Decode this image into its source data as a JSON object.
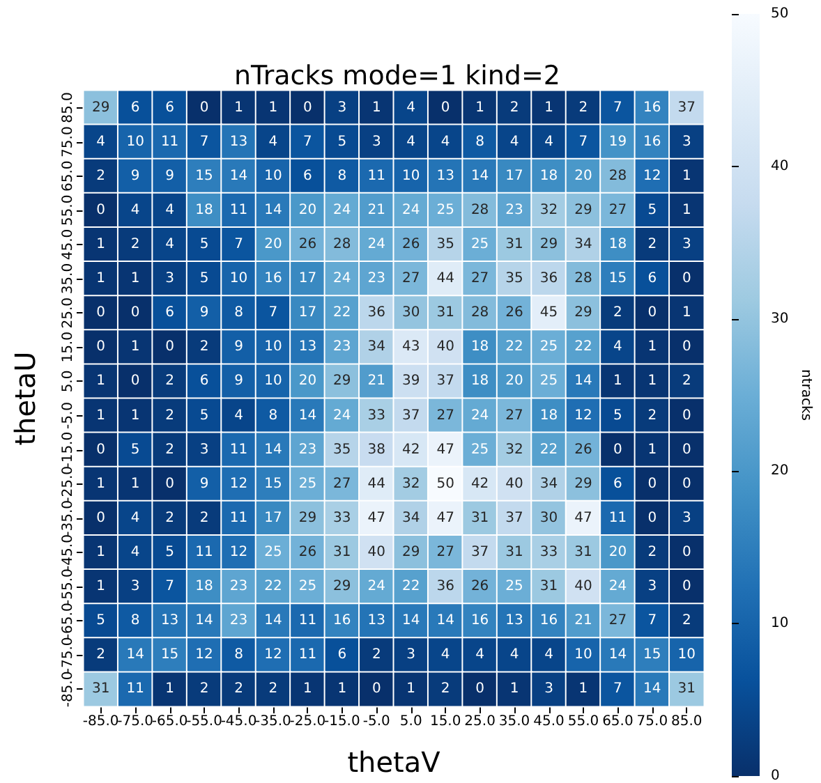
{
  "chart_data": {
    "type": "heatmap",
    "title": "nTracks mode=1 kind=2",
    "xlabel": "thetaV",
    "ylabel": "thetaU",
    "clabel": "ntracks",
    "categories": [
      "-85.0",
      "-75.0",
      "-65.0",
      "-55.0",
      "-45.0",
      "-35.0",
      "-25.0",
      "-15.0",
      "-5.0",
      "5.0",
      "15.0",
      "25.0",
      "35.0",
      "45.0",
      "55.0",
      "65.0",
      "75.0",
      "85.0"
    ],
    "y_categories": [
      "85.0",
      "75.0",
      "65.0",
      "55.0",
      "45.0",
      "35.0",
      "25.0",
      "15.0",
      "5.0",
      "-5.0",
      "-15.0",
      "-25.0",
      "-35.0",
      "-45.0",
      "-55.0",
      "-65.0",
      "-75.0",
      "-85.0"
    ],
    "cells": [
      [
        29,
        6,
        6,
        0,
        1,
        1,
        0,
        3,
        1,
        4,
        0,
        1,
        2,
        1,
        2,
        7,
        16,
        37
      ],
      [
        4,
        10,
        11,
        7,
        13,
        4,
        7,
        5,
        3,
        4,
        4,
        8,
        4,
        4,
        7,
        19,
        16,
        3
      ],
      [
        2,
        9,
        9,
        15,
        14,
        10,
        6,
        8,
        11,
        10,
        13,
        14,
        17,
        18,
        20,
        28,
        12,
        1
      ],
      [
        0,
        4,
        4,
        18,
        11,
        14,
        20,
        24,
        21,
        24,
        25,
        28,
        23,
        32,
        29,
        27,
        5,
        1
      ],
      [
        1,
        2,
        4,
        5,
        7,
        20,
        26,
        28,
        24,
        26,
        35,
        25,
        31,
        29,
        34,
        18,
        2,
        3
      ],
      [
        1,
        1,
        3,
        5,
        10,
        16,
        17,
        24,
        23,
        27,
        44,
        27,
        35,
        36,
        28,
        15,
        6,
        0
      ],
      [
        0,
        0,
        6,
        9,
        8,
        7,
        17,
        22,
        36,
        30,
        31,
        28,
        26,
        45,
        29,
        2,
        0,
        1
      ],
      [
        0,
        1,
        0,
        2,
        9,
        10,
        13,
        23,
        34,
        43,
        40,
        18,
        22,
        25,
        22,
        4,
        1,
        0
      ],
      [
        1,
        0,
        2,
        6,
        9,
        10,
        20,
        29,
        21,
        39,
        37,
        18,
        20,
        25,
        14,
        1,
        1,
        2
      ],
      [
        1,
        1,
        2,
        5,
        4,
        8,
        14,
        24,
        33,
        37,
        27,
        24,
        27,
        18,
        12,
        5,
        2,
        0
      ],
      [
        0,
        5,
        2,
        3,
        11,
        14,
        23,
        35,
        38,
        42,
        47,
        25,
        32,
        22,
        26,
        0,
        1,
        0
      ],
      [
        1,
        1,
        0,
        9,
        12,
        15,
        25,
        27,
        44,
        32,
        50,
        42,
        40,
        34,
        29,
        6,
        0,
        0
      ],
      [
        0,
        4,
        2,
        2,
        11,
        17,
        29,
        33,
        47,
        34,
        47,
        31,
        37,
        30,
        47,
        11,
        0,
        3
      ],
      [
        1,
        4,
        5,
        11,
        12,
        25,
        26,
        31,
        40,
        29,
        27,
        37,
        31,
        33,
        31,
        20,
        2,
        0
      ],
      [
        1,
        3,
        7,
        18,
        23,
        22,
        25,
        29,
        24,
        22,
        36,
        26,
        25,
        31,
        40,
        24,
        3,
        0
      ],
      [
        5,
        8,
        13,
        14,
        23,
        14,
        11,
        16,
        13,
        14,
        14,
        16,
        13,
        16,
        21,
        27,
        7,
        2
      ],
      [
        2,
        14,
        15,
        12,
        8,
        12,
        11,
        6,
        2,
        3,
        4,
        4,
        4,
        4,
        10,
        14,
        15,
        10
      ],
      [
        31,
        11,
        1,
        2,
        2,
        2,
        1,
        1,
        0,
        1,
        2,
        0,
        1,
        3,
        1,
        7,
        14,
        31
      ]
    ],
    "clim": [
      0,
      50
    ],
    "cticks": [
      0,
      10,
      20,
      30,
      40,
      50
    ],
    "data_labels": true
  }
}
